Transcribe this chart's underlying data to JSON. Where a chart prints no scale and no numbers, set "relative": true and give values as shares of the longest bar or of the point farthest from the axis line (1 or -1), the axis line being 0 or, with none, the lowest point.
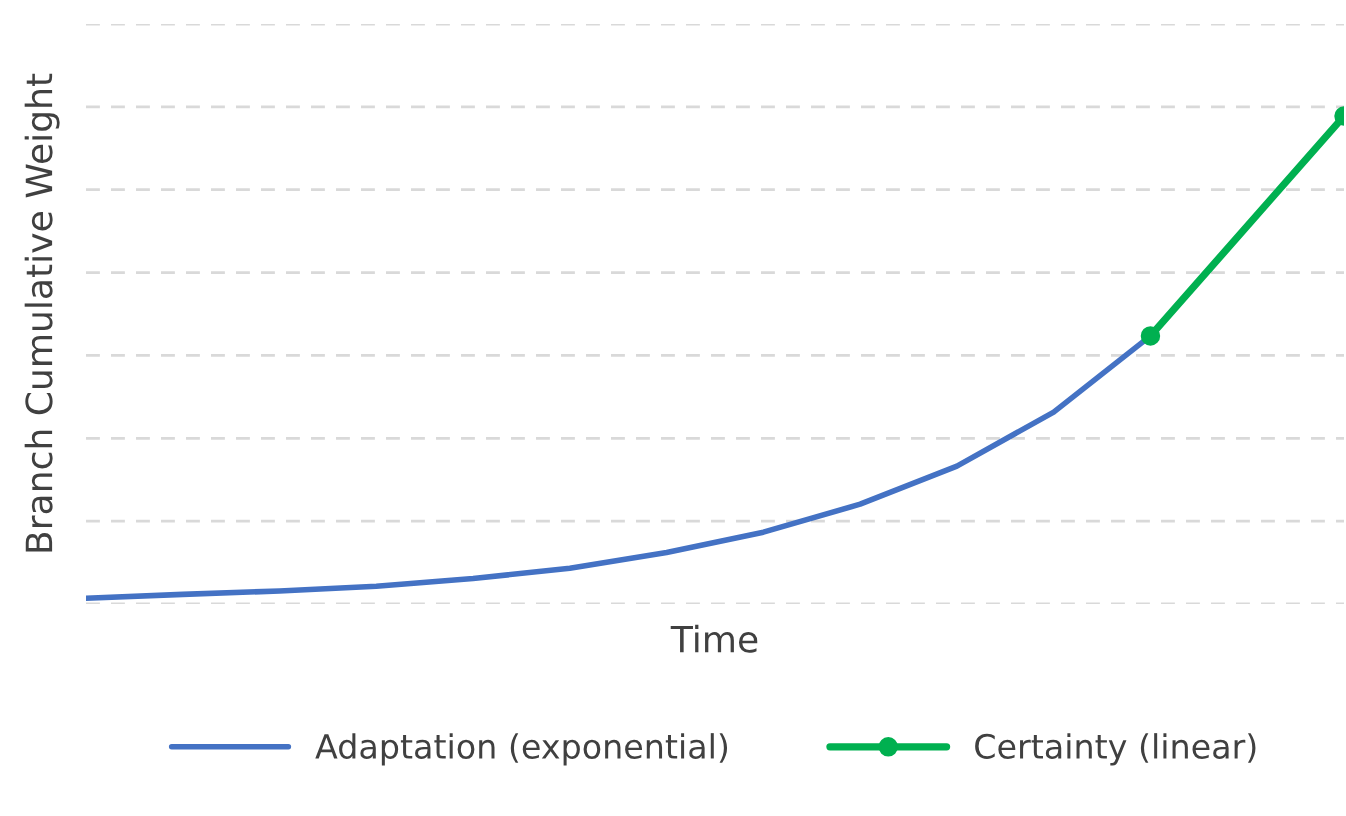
{
  "chart_data": {
    "type": "line",
    "relative": true,
    "xlabel": "Time",
    "ylabel": "Branch Cumulative Weight",
    "categories": [
      null,
      null,
      null,
      null,
      null,
      null,
      null,
      null,
      null,
      null,
      null,
      null,
      null,
      null
    ],
    "series": [
      {
        "name": "Adaptation (exponential)",
        "color": "#4472c4",
        "marker": "none",
        "values": [
          0,
          0.008,
          0.015,
          0.025,
          0.041,
          0.062,
          0.095,
          0.137,
          0.195,
          0.274,
          0.386,
          0.544,
          null,
          null
        ]
      },
      {
        "name": "Certainty (linear)",
        "color": "#00b050",
        "marker": "circle",
        "values": [
          null,
          null,
          null,
          null,
          null,
          null,
          null,
          null,
          null,
          null,
          null,
          0.544,
          null,
          1
        ]
      }
    ],
    "grid": "y",
    "line_style": "solid",
    "legend": "bottom"
  }
}
